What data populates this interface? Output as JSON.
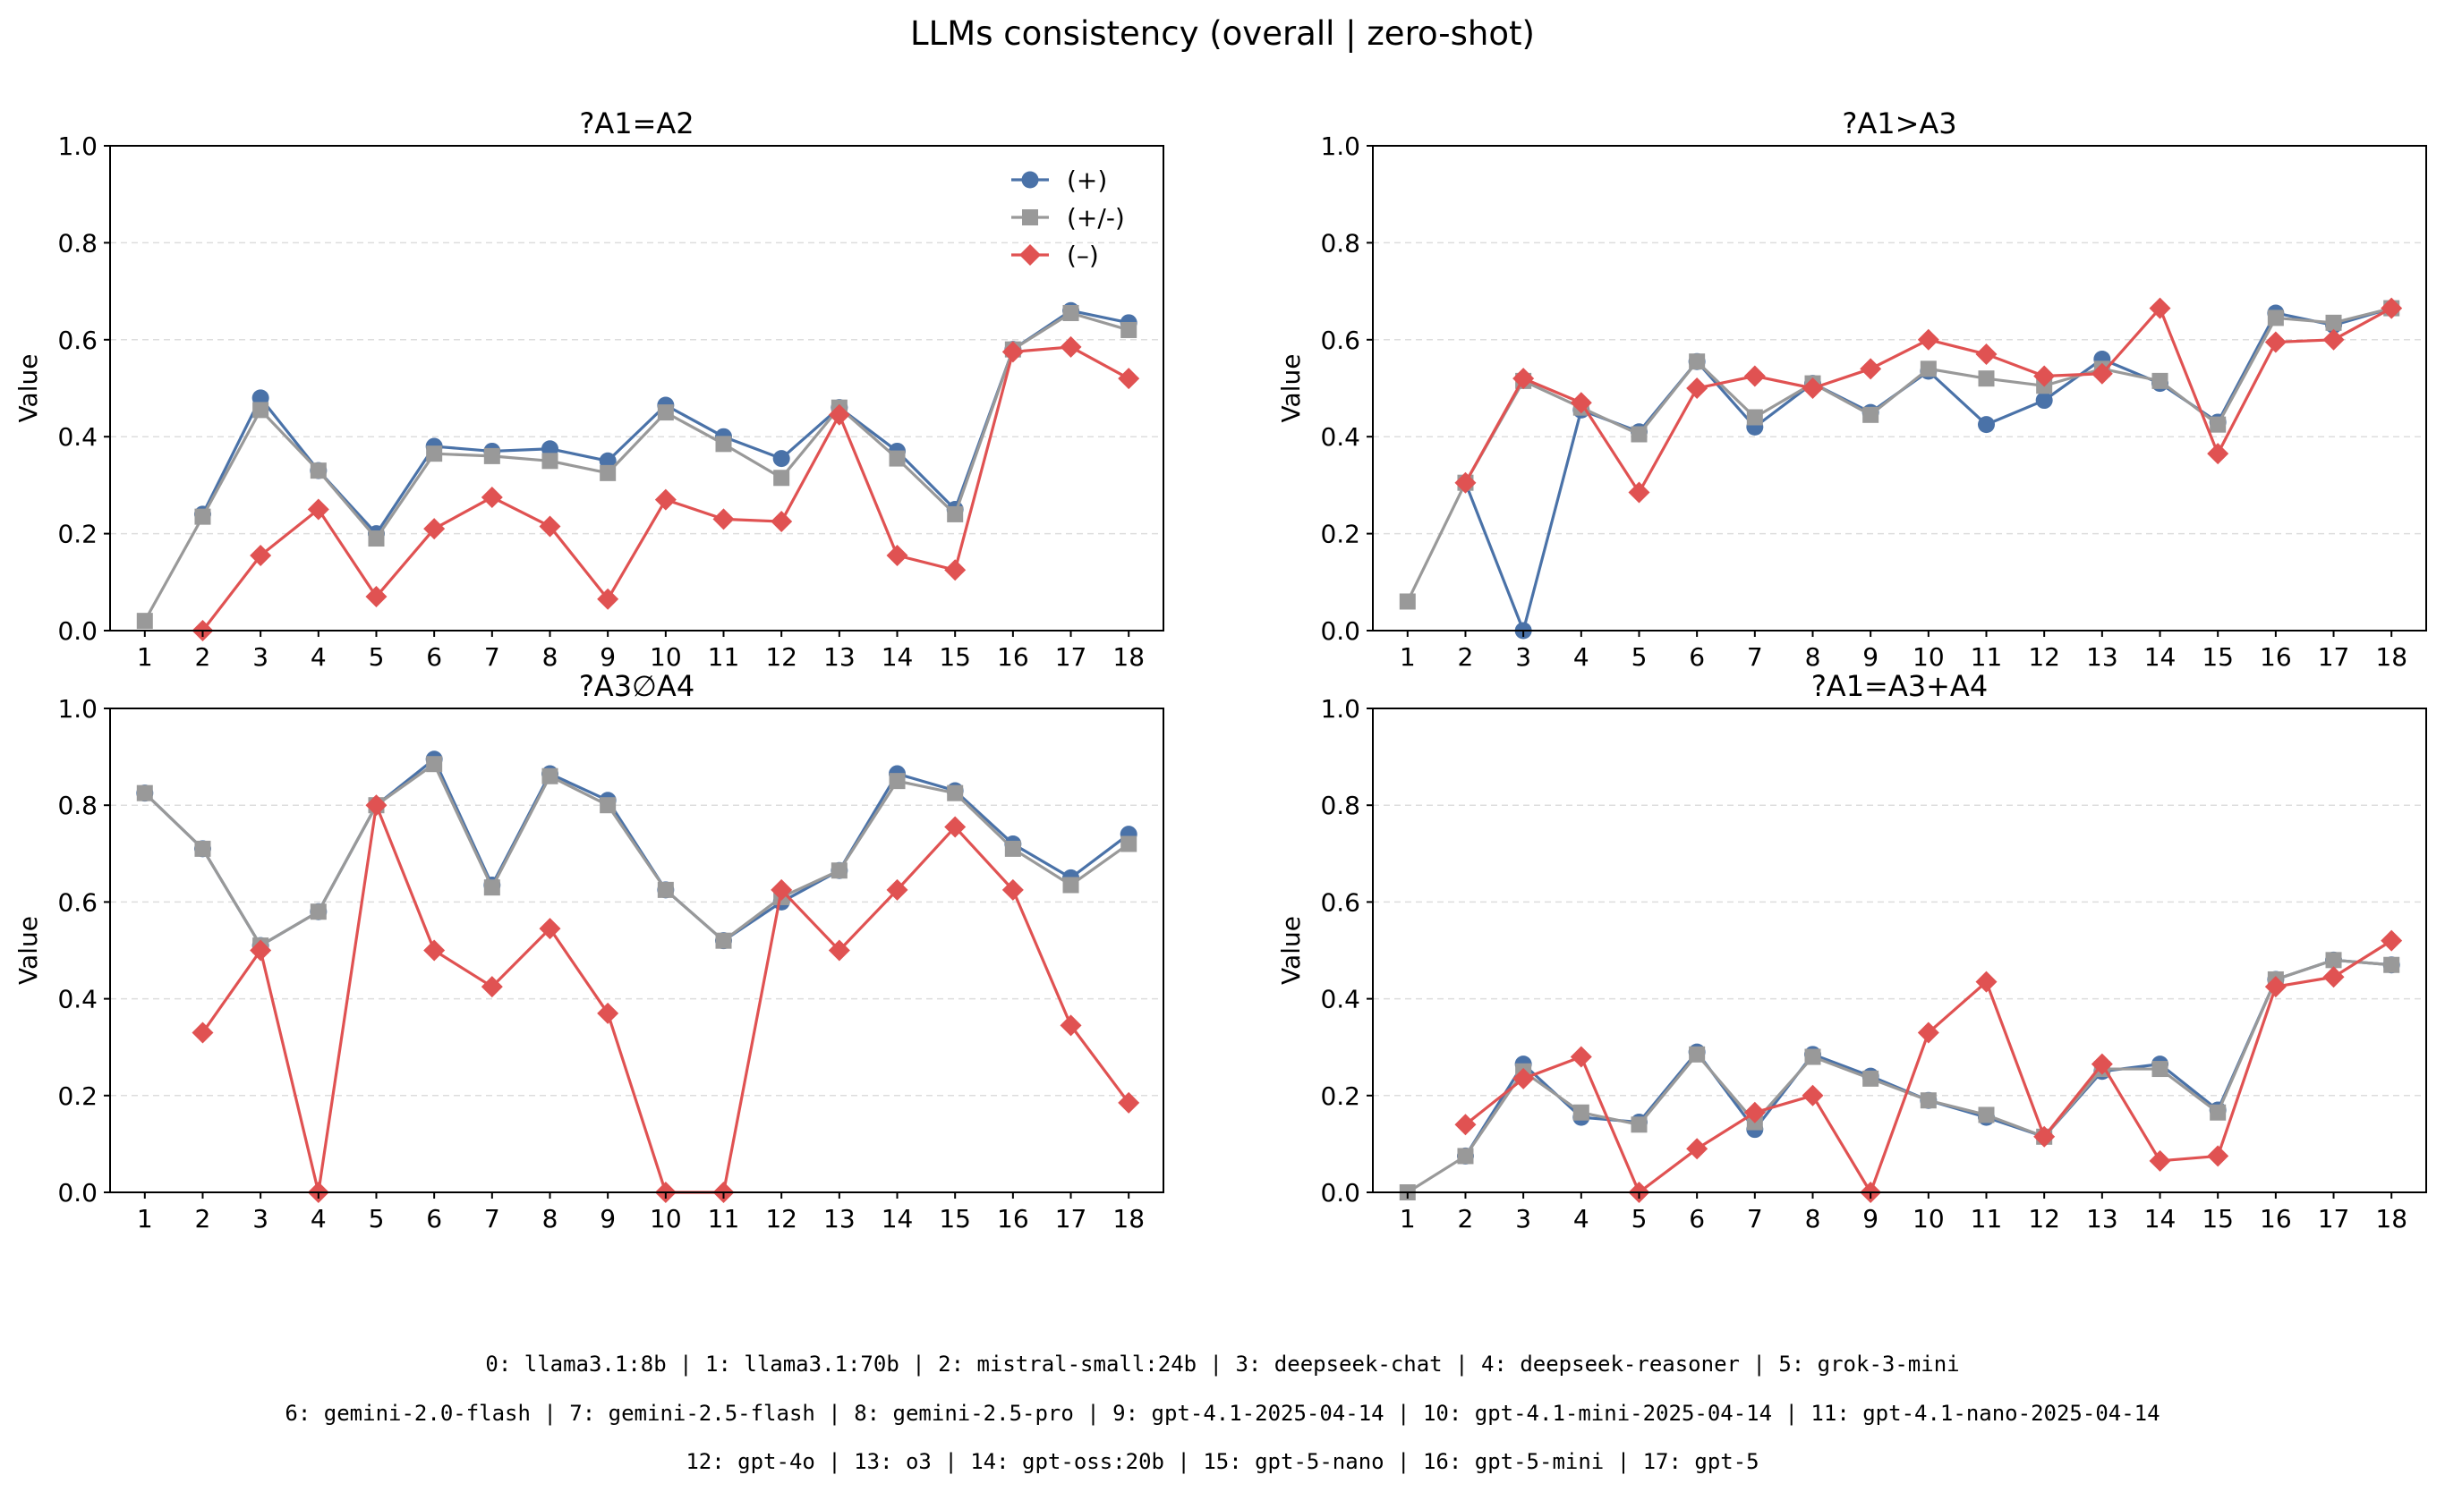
{
  "figure": {
    "title": "LLMs consistency (overall | zero-shot)",
    "footer_lines": [
      "0: llama3.1:8b |  1: llama3.1:70b |  2: mistral-small:24b |  3: deepseek-chat |  4: deepseek-reasoner |  5: grok-3-mini",
      "6: gemini-2.0-flash |  7: gemini-2.5-flash |  8: gemini-2.5-pro |  9: gpt-4.1-2025-04-14 | 10: gpt-4.1-mini-2025-04-14 | 11: gpt-4.1-nano-2025-04-14",
      "12: gpt-4o | 13: o3 | 14: gpt-oss:20b | 15: gpt-5-nano | 16: gpt-5-mini | 17: gpt-5"
    ]
  },
  "colors": {
    "plus": "#4a72a8",
    "plusminus": "#999999",
    "minus": "#e05252"
  },
  "chart_data": [
    {
      "type": "line",
      "title": "?A1=A2",
      "ylabel": "Value",
      "xlabel": "",
      "ylim": [
        0,
        1
      ],
      "yticks": [
        "0.0",
        "0.2",
        "0.4",
        "0.6",
        "0.8",
        "1.0"
      ],
      "x": [
        1,
        2,
        3,
        4,
        5,
        6,
        7,
        8,
        9,
        10,
        11,
        12,
        13,
        14,
        15,
        16,
        17,
        18
      ],
      "grid": "y dashed",
      "legend": {
        "placement": "upper-right"
      },
      "series": [
        {
          "name": "(+)",
          "marker": "circle",
          "values": [
            null,
            0.24,
            0.48,
            0.33,
            0.2,
            0.38,
            0.37,
            0.375,
            0.35,
            0.465,
            0.4,
            0.355,
            0.46,
            0.37,
            0.25,
            0.58,
            0.66,
            0.635
          ]
        },
        {
          "name": "(+/-)",
          "marker": "square",
          "values": [
            0.02,
            0.235,
            0.455,
            0.33,
            0.19,
            0.365,
            0.36,
            0.35,
            0.325,
            0.45,
            0.385,
            0.315,
            0.46,
            0.355,
            0.24,
            0.58,
            0.655,
            0.62
          ]
        },
        {
          "name": "(–)",
          "marker": "diamond",
          "values": [
            null,
            0.0,
            0.155,
            0.25,
            0.07,
            0.21,
            0.275,
            0.215,
            0.065,
            0.27,
            0.23,
            0.225,
            0.445,
            0.155,
            0.125,
            0.575,
            0.585,
            0.52
          ]
        }
      ]
    },
    {
      "type": "line",
      "title": "?A1>A3",
      "ylabel": "Value",
      "xlabel": "",
      "ylim": [
        0,
        1
      ],
      "yticks": [
        "0.0",
        "0.2",
        "0.4",
        "0.6",
        "0.8",
        "1.0"
      ],
      "x": [
        1,
        2,
        3,
        4,
        5,
        6,
        7,
        8,
        9,
        10,
        11,
        12,
        13,
        14,
        15,
        16,
        17,
        18
      ],
      "grid": "y dashed",
      "series": [
        {
          "name": "(+)",
          "marker": "circle",
          "values": [
            null,
            0.305,
            0.0,
            0.455,
            0.41,
            0.555,
            0.42,
            0.51,
            0.45,
            0.535,
            0.425,
            0.475,
            0.56,
            0.51,
            0.43,
            0.655,
            0.63,
            0.665
          ]
        },
        {
          "name": "(+/-)",
          "marker": "square",
          "values": [
            0.06,
            0.305,
            0.515,
            0.46,
            0.405,
            0.555,
            0.44,
            0.51,
            0.445,
            0.54,
            0.52,
            0.505,
            0.54,
            0.515,
            0.425,
            0.645,
            0.635,
            0.665
          ]
        },
        {
          "name": "(–)",
          "marker": "diamond",
          "values": [
            null,
            0.305,
            0.52,
            0.47,
            0.285,
            0.5,
            0.525,
            0.5,
            0.54,
            0.6,
            0.57,
            0.525,
            0.53,
            0.665,
            0.365,
            0.595,
            0.6,
            0.665
          ]
        }
      ]
    },
    {
      "type": "line",
      "title": "?A3∅A4",
      "ylabel": "Value",
      "xlabel": "",
      "ylim": [
        0,
        1
      ],
      "yticks": [
        "0.0",
        "0.2",
        "0.4",
        "0.6",
        "0.8",
        "1.0"
      ],
      "x": [
        1,
        2,
        3,
        4,
        5,
        6,
        7,
        8,
        9,
        10,
        11,
        12,
        13,
        14,
        15,
        16,
        17,
        18
      ],
      "grid": "y dashed",
      "series": [
        {
          "name": "(+)",
          "marker": "circle",
          "values": [
            0.825,
            0.71,
            0.51,
            0.58,
            0.8,
            0.895,
            0.635,
            0.865,
            0.81,
            0.625,
            0.52,
            0.6,
            0.665,
            0.865,
            0.83,
            0.72,
            0.65,
            0.74
          ]
        },
        {
          "name": "(+/-)",
          "marker": "square",
          "values": [
            0.825,
            0.71,
            0.51,
            0.58,
            0.8,
            0.885,
            0.63,
            0.86,
            0.8,
            0.625,
            0.52,
            0.61,
            0.665,
            0.85,
            0.825,
            0.71,
            0.635,
            0.72
          ]
        },
        {
          "name": "(–)",
          "marker": "diamond",
          "values": [
            null,
            0.33,
            0.5,
            0.0,
            0.8,
            0.5,
            0.425,
            0.545,
            0.37,
            0.0,
            0.0,
            0.625,
            0.5,
            0.625,
            0.755,
            0.625,
            0.345,
            0.185
          ]
        }
      ]
    },
    {
      "type": "line",
      "title": "?A1=A3+A4",
      "ylabel": "Value",
      "xlabel": "",
      "ylim": [
        0,
        1
      ],
      "yticks": [
        "0.0",
        "0.2",
        "0.4",
        "0.6",
        "0.8",
        "1.0"
      ],
      "x": [
        1,
        2,
        3,
        4,
        5,
        6,
        7,
        8,
        9,
        10,
        11,
        12,
        13,
        14,
        15,
        16,
        17,
        18
      ],
      "grid": "y dashed",
      "series": [
        {
          "name": "(+)",
          "marker": "circle",
          "values": [
            null,
            0.075,
            0.265,
            0.155,
            0.145,
            0.29,
            0.13,
            0.285,
            0.24,
            0.19,
            0.155,
            0.115,
            0.25,
            0.265,
            0.17,
            0.44,
            0.48,
            0.47
          ]
        },
        {
          "name": "(+/-)",
          "marker": "square",
          "values": [
            0.0,
            0.075,
            0.25,
            0.165,
            0.14,
            0.285,
            0.145,
            0.28,
            0.235,
            0.19,
            0.16,
            0.115,
            0.255,
            0.255,
            0.165,
            0.44,
            0.48,
            0.47
          ]
        },
        {
          "name": "(–)",
          "marker": "diamond",
          "values": [
            null,
            0.14,
            0.235,
            0.28,
            0.0,
            0.09,
            0.165,
            0.2,
            0.0,
            0.33,
            0.435,
            0.115,
            0.265,
            0.065,
            0.075,
            0.425,
            0.445,
            0.52
          ]
        }
      ]
    }
  ]
}
